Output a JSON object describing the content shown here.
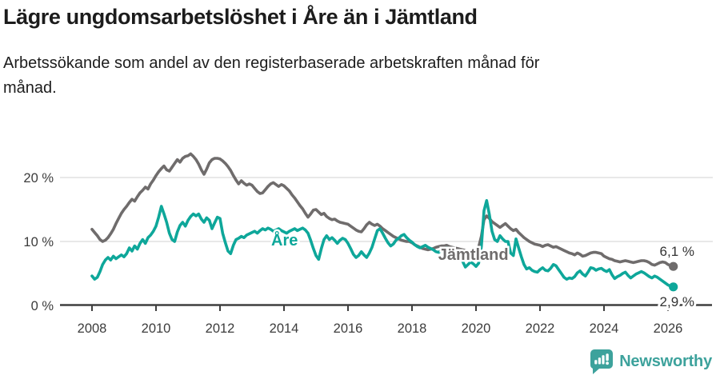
{
  "header": {
    "title": "Lägre ungdomsarbetslöshet i Åre än i Jämtland",
    "subtitle": "Arbetssökande som andel av den registerbaserade arbetskraften månad för\nmånad."
  },
  "footer": {
    "brand": "Newsworthy",
    "brand_color": "#3da29c",
    "icon": "newsworthy-chart-bubble-icon"
  },
  "chart_data": {
    "type": "line",
    "title": "Lägre ungdomsarbetslöshet i Åre än i Jämtland",
    "unit": "%",
    "x_interval": "monthly",
    "x_start_year": 2008,
    "xlim": [
      2007,
      2027.4
    ],
    "ylim": [
      0,
      26
    ],
    "grid": "horizontal",
    "x_ticks": [
      2008,
      2010,
      2012,
      2014,
      2016,
      2018,
      2020,
      2022,
      2024,
      2026
    ],
    "y_ticks": [
      {
        "value": 0,
        "label": "0 %"
      },
      {
        "value": 10,
        "label": "10 %"
      },
      {
        "value": 20,
        "label": "20 %"
      }
    ],
    "y_gridlines": [
      10,
      20
    ],
    "axis_color": "#3f3f3f",
    "grid_color": "#d9d9d9",
    "tick_label_color": "#3c3c3c",
    "value_label_color": "#333333",
    "series": [
      {
        "id": "jamtland",
        "name": "Jämtland",
        "color": "#6f6c6c",
        "end_label": "6,1 %",
        "label_anchor": {
          "year": 2018.82,
          "value": 8.0
        },
        "values": [
          11.9,
          11.4,
          10.9,
          10.3,
          10.0,
          10.2,
          10.6,
          11.2,
          11.9,
          12.8,
          13.6,
          14.4,
          15.0,
          15.5,
          16.1,
          16.6,
          16.3,
          17.0,
          17.6,
          18.0,
          18.5,
          18.2,
          19.0,
          19.6,
          20.3,
          20.9,
          21.4,
          21.8,
          21.2,
          21.0,
          21.6,
          22.2,
          22.8,
          22.4,
          23.0,
          23.3,
          23.4,
          23.7,
          23.3,
          22.8,
          22.1,
          21.2,
          20.5,
          21.3,
          22.3,
          22.8,
          23.0,
          23.0,
          22.9,
          22.6,
          22.2,
          21.7,
          21.1,
          20.3,
          19.6,
          19.0,
          19.5,
          19.1,
          18.8,
          19.0,
          18.8,
          18.3,
          17.8,
          17.5,
          17.6,
          18.1,
          18.6,
          19.0,
          19.2,
          18.9,
          18.6,
          18.9,
          18.7,
          18.3,
          17.9,
          17.3,
          16.8,
          16.2,
          15.6,
          15.1,
          14.4,
          13.8,
          14.3,
          14.9,
          15.0,
          14.6,
          14.2,
          14.4,
          13.9,
          13.6,
          13.4,
          13.5,
          13.2,
          13.0,
          12.9,
          12.8,
          12.7,
          12.4,
          12.1,
          11.8,
          11.6,
          11.5,
          12.0,
          12.6,
          13.0,
          12.7,
          12.5,
          12.7,
          12.4,
          12.0,
          11.7,
          11.4,
          11.1,
          10.8,
          10.6,
          10.4,
          10.2,
          10.1,
          10.0,
          10.0,
          9.8,
          9.5,
          9.3,
          9.1,
          8.9,
          8.8,
          8.7,
          8.8,
          8.9,
          9.1,
          9.2,
          9.3,
          9.3,
          9.4,
          9.2,
          9.1,
          9.0,
          8.9,
          8.8,
          8.7,
          8.6,
          8.5,
          8.5,
          8.6,
          8.8,
          9.1,
          10.8,
          13.4,
          14.0,
          13.6,
          13.1,
          12.8,
          12.5,
          12.2,
          12.5,
          12.8,
          12.4,
          12.0,
          11.7,
          11.9,
          11.4,
          11.0,
          10.6,
          10.3,
          10.0,
          9.8,
          9.6,
          9.5,
          9.4,
          9.2,
          9.4,
          9.5,
          9.3,
          9.1,
          9.2,
          9.0,
          8.8,
          8.6,
          8.4,
          8.2,
          8.1,
          7.9,
          8.2,
          8.0,
          7.7,
          7.8,
          8.0,
          8.2,
          8.3,
          8.3,
          8.2,
          8.1,
          7.7,
          7.5,
          7.3,
          7.2,
          7.0,
          6.9,
          6.8,
          6.9,
          7.0,
          6.9,
          6.8,
          6.7,
          6.8,
          6.9,
          7.0,
          7.0,
          6.9,
          6.7,
          6.4,
          6.3,
          6.5,
          6.7,
          6.8,
          6.7,
          6.4,
          6.2,
          6.1
        ]
      },
      {
        "id": "are",
        "name": "Åre",
        "color": "#0ea79a",
        "end_label": "2,9 %",
        "label_anchor": {
          "year": 2013.6,
          "value": 10.25
        },
        "values": [
          4.6,
          4.1,
          4.4,
          5.3,
          6.4,
          7.1,
          7.5,
          7.1,
          7.7,
          7.3,
          7.6,
          7.9,
          7.6,
          8.1,
          9.0,
          8.5,
          9.3,
          8.8,
          9.7,
          10.3,
          9.7,
          10.6,
          11.0,
          11.6,
          12.4,
          13.8,
          15.5,
          14.3,
          13.0,
          11.3,
          10.3,
          10.0,
          11.5,
          12.5,
          13.0,
          12.4,
          13.3,
          13.9,
          14.3,
          14.0,
          14.3,
          13.5,
          13.0,
          13.7,
          13.3,
          12.0,
          12.9,
          13.8,
          13.6,
          11.3,
          9.8,
          8.5,
          8.1,
          9.4,
          10.3,
          10.5,
          10.8,
          10.6,
          11.0,
          11.2,
          11.4,
          11.6,
          11.3,
          11.7,
          12.0,
          11.8,
          12.1,
          11.9,
          11.6,
          11.8,
          12.0,
          11.7,
          11.5,
          11.3,
          11.6,
          11.8,
          12.0,
          11.7,
          11.9,
          12.1,
          11.8,
          11.3,
          10.2,
          8.9,
          7.8,
          7.2,
          8.9,
          10.3,
          10.9,
          10.3,
          10.6,
          10.2,
          9.7,
          10.2,
          10.5,
          10.3,
          9.7,
          8.9,
          8.0,
          7.5,
          7.8,
          8.4,
          7.9,
          7.5,
          8.2,
          9.1,
          10.4,
          11.7,
          12.0,
          11.3,
          10.5,
          9.8,
          9.3,
          9.6,
          10.2,
          10.5,
          10.9,
          11.1,
          10.6,
          10.2,
          9.9,
          9.5,
          9.2,
          9.0,
          9.2,
          9.4,
          9.1,
          8.9,
          8.7,
          8.4,
          8.3,
          8.6,
          8.9,
          9.0,
          8.7,
          8.4,
          8.1,
          7.9,
          7.7,
          6.9,
          6.0,
          6.4,
          6.8,
          6.5,
          6.1,
          6.6,
          9.2,
          14.8,
          16.4,
          14.2,
          11.6,
          10.3,
          10.0,
          10.9,
          10.4,
          10.0,
          10.0,
          8.2,
          7.8,
          10.4,
          9.0,
          7.6,
          6.4,
          5.7,
          5.9,
          5.5,
          5.3,
          5.2,
          5.6,
          5.9,
          5.5,
          5.4,
          5.8,
          6.4,
          6.2,
          5.6,
          5.0,
          4.4,
          4.1,
          4.3,
          4.2,
          4.5,
          5.1,
          5.4,
          4.9,
          4.6,
          5.2,
          5.9,
          5.8,
          5.5,
          5.7,
          5.8,
          5.5,
          5.3,
          5.6,
          4.8,
          4.2,
          4.5,
          4.7,
          5.0,
          5.2,
          4.7,
          4.3,
          4.6,
          4.9,
          5.1,
          5.3,
          5.1,
          4.8,
          4.5,
          4.3,
          4.6,
          4.4,
          4.1,
          3.8,
          3.5,
          3.2,
          3.0,
          2.9
        ]
      }
    ]
  }
}
